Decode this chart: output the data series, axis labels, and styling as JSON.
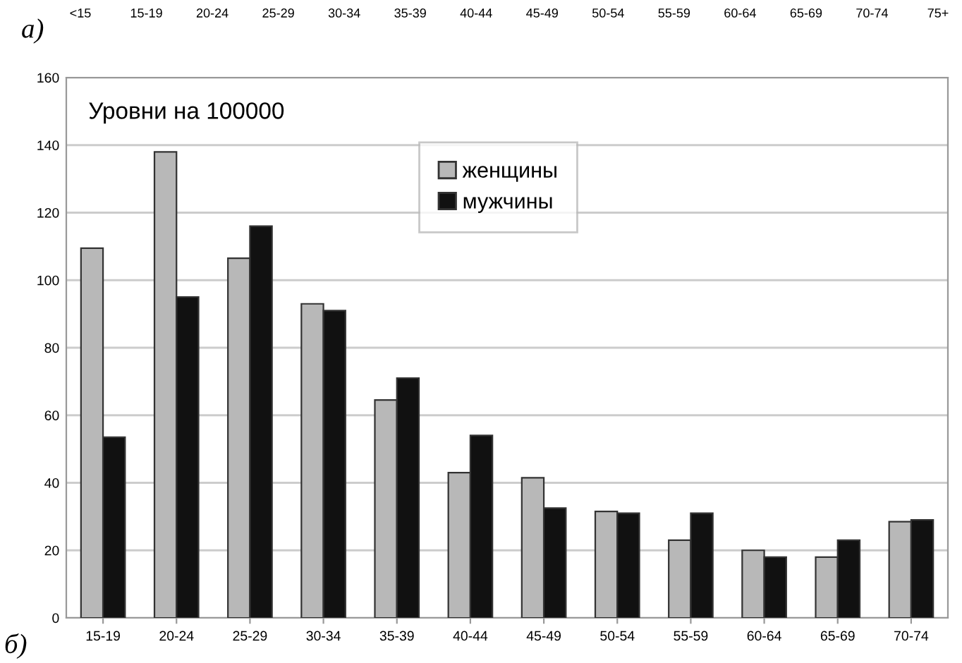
{
  "chart_data": {
    "type": "bar",
    "title": "Уровни на 100000",
    "categories": [
      "15-19",
      "20-24",
      "25-29",
      "30-34",
      "35-39",
      "40-44",
      "45-49",
      "50-54",
      "55-59",
      "60-64",
      "65-69",
      "70-74"
    ],
    "series": [
      {
        "name": "женщины",
        "color": "#b8b8b8",
        "values": [
          109.5,
          138,
          106.5,
          93,
          64.5,
          43,
          41.5,
          31.5,
          23,
          20,
          18,
          28.5
        ]
      },
      {
        "name": "мужчины",
        "color": "#111111",
        "values": [
          53.5,
          95,
          116,
          91,
          71,
          54,
          32.5,
          31,
          31,
          18,
          23,
          29
        ]
      }
    ],
    "ylim": [
      0,
      160
    ],
    "yticks": [
      0,
      20,
      40,
      60,
      80,
      100,
      120,
      140,
      160
    ],
    "grid": "y",
    "legend": "top",
    "annotations": [
      "а)",
      "<15",
      "15-19",
      "20-24",
      "25-29",
      "30-34",
      "35-39",
      "40-44",
      "45-49",
      "50-54",
      "55-59",
      "60-64",
      "65-69",
      "70-74",
      "75+",
      "б)"
    ]
  }
}
